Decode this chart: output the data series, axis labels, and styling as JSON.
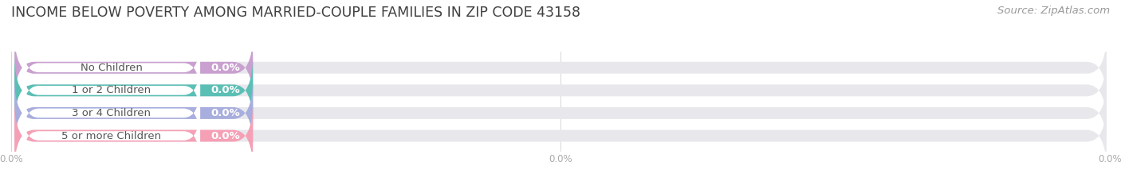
{
  "title": "INCOME BELOW POVERTY AMONG MARRIED-COUPLE FAMILIES IN ZIP CODE 43158",
  "source": "Source: ZipAtlas.com",
  "categories": [
    "No Children",
    "1 or 2 Children",
    "3 or 4 Children",
    "5 or more Children"
  ],
  "values": [
    0.0,
    0.0,
    0.0,
    0.0
  ],
  "bar_colors": [
    "#c9a0d0",
    "#5bbfb5",
    "#a8aedd",
    "#f5a0b5"
  ],
  "bar_bg_color": "#e8e8ec",
  "background_color": "#ffffff",
  "label_pill_color": "#ffffff",
  "label_text_color": "#555555",
  "value_label_color": "#ffffff",
  "title_color": "#404040",
  "title_fontsize": 12.5,
  "label_fontsize": 9.5,
  "value_fontsize": 9.5,
  "source_fontsize": 9.5,
  "xtick_labels": [
    "0.0%",
    "0.0%",
    "0.0%"
  ],
  "xtick_color": "#aaaaaa"
}
